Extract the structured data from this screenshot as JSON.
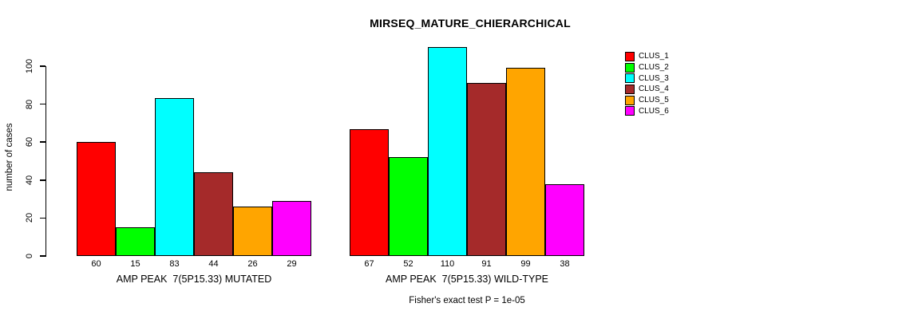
{
  "chart_data": {
    "type": "bar",
    "title": "MIRSEQ_MATURE_CHIERARCHICAL",
    "ylabel": "number of cases",
    "xlabel": "",
    "ylim": [
      0,
      110
    ],
    "yticks": [
      0,
      20,
      40,
      60,
      80,
      100
    ],
    "grid": false,
    "legend_position": "right",
    "annotation": "Fisher's exact test P = 1e-05",
    "clusters": [
      {
        "name": "CLUS_1",
        "color": "#FF0000"
      },
      {
        "name": "CLUS_2",
        "color": "#00FF00"
      },
      {
        "name": "CLUS_3",
        "color": "#00FFFF"
      },
      {
        "name": "CLUS_4",
        "color": "#A52A2A"
      },
      {
        "name": "CLUS_5",
        "color": "#FFA500"
      },
      {
        "name": "CLUS_6",
        "color": "#FF00FF"
      }
    ],
    "groups": [
      {
        "label": "AMP PEAK  7(5P15.33) MUTATED",
        "values": [
          60,
          15,
          83,
          44,
          26,
          29
        ]
      },
      {
        "label": "AMP PEAK  7(5P15.33) WILD-TYPE",
        "values": [
          67,
          52,
          110,
          91,
          99,
          38
        ]
      }
    ]
  }
}
